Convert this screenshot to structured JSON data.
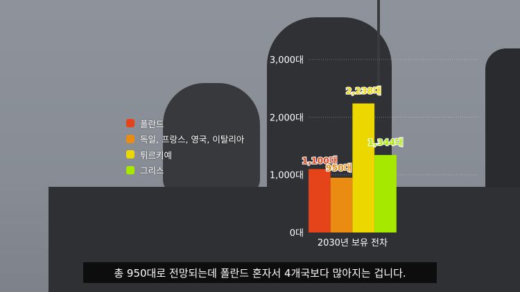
{
  "chart_data": {
    "type": "bar",
    "xlabel": "2030년 보유 전차",
    "categories": [
      "폴란드",
      "독일, 프랑스, 영국, 이탈리아",
      "튀르키예",
      "그리스"
    ],
    "values": [
      1100,
      950,
      2238,
      1344
    ],
    "data_labels": [
      "1,100대",
      "950대",
      "2,238대",
      "1,344대"
    ],
    "colors": [
      "#e5441a",
      "#ea8c12",
      "#ecd800",
      "#a6e800"
    ],
    "label_colors": [
      "#e5441a",
      "#ea8c12",
      "#ecd800",
      "#a6e800"
    ],
    "ylim": [
      0,
      3000
    ],
    "yticks": [
      0,
      1000,
      2000,
      3000
    ],
    "ytick_labels": [
      "0대",
      "1,000대",
      "2,000대",
      "3,000대"
    ],
    "grid": true,
    "legend": "left"
  },
  "subtitle": "총 950대로 전망되는데 폴란드 혼자서 4개국보다 많아지는 겁니다."
}
